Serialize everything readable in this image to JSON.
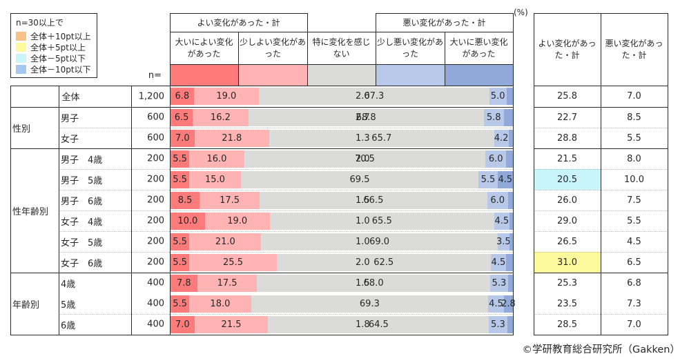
{
  "legend": {
    "title": "n=30以上で",
    "items": [
      {
        "key": "plus10",
        "label": "全体＋10pt以上",
        "color": "#f9c18a"
      },
      {
        "key": "plus5",
        "label": "全体＋5pt以上",
        "color": "#fdfa9d"
      },
      {
        "key": "minus5",
        "label": "全体－5pt以下",
        "color": "#c9f4f9"
      },
      {
        "key": "minus10",
        "label": "全体－10pt以下",
        "color": "#a6c7f0"
      }
    ]
  },
  "labels": {
    "unit": "(%)",
    "n": "n="
  },
  "header": {
    "good_total": "よい変化があった・計",
    "bad_total": "悪い変化があった・計"
  },
  "right_table": {
    "good": "よい変化があった・計",
    "bad": "悪い変化があった・計"
  },
  "colors": {
    "border": "#262626",
    "highlights": {
      "plus10": "#f9c18a",
      "plus5": "#fdfa9d",
      "minus5": "#c9f4f9",
      "minus10": "#a6c7f0"
    }
  },
  "chart_data": {
    "type": "bar",
    "stacked": true,
    "orientation": "horizontal",
    "unit": "%",
    "value_range": [
      0,
      100
    ],
    "series": [
      {
        "label": "大いによい変化があった",
        "color": "#ff7b7b"
      },
      {
        "label": "少しよい変化があった",
        "color": "#ffb3b3"
      },
      {
        "label": "特に変化を感じない",
        "color": "#dbdbd9"
      },
      {
        "label": "少し悪い変化があった",
        "color": "#b8c8e8"
      },
      {
        "label": "大いに悪い変化があった",
        "color": "#90a9d8"
      }
    ],
    "rows": [
      {
        "group": "",
        "label": "全体",
        "n": "1,200",
        "values": [
          6.8,
          19.0,
          67.3,
          5.0,
          2.0
        ],
        "last_outside": true,
        "good": "25.8",
        "bad": "7.0"
      },
      {
        "group": "性別",
        "label": "男子",
        "n": "600",
        "values": [
          6.5,
          16.2,
          68.8,
          5.8,
          2.7
        ],
        "last_outside": true,
        "good": "22.7",
        "bad": "8.5"
      },
      {
        "group": "性別",
        "label": "女子",
        "n": "600",
        "values": [
          7.0,
          21.8,
          65.7,
          4.2,
          1.3
        ],
        "last_outside": true,
        "good": "28.8",
        "bad": "5.5"
      },
      {
        "group": "性年齢別",
        "label": "男子　4歳",
        "n": "200",
        "values": [
          5.5,
          16.0,
          70.5,
          6.0,
          2.0
        ],
        "last_outside": true,
        "good": "21.5",
        "bad": "8.0"
      },
      {
        "group": "性年齢別",
        "label": "男子　5歳",
        "n": "200",
        "values": [
          5.5,
          15.0,
          69.5,
          5.5,
          4.5
        ],
        "last_outside": false,
        "good": "20.5",
        "bad": "10.0",
        "good_hl": "minus5"
      },
      {
        "group": "性年齢別",
        "label": "男子　6歳",
        "n": "200",
        "values": [
          8.5,
          17.5,
          66.5,
          6.0,
          1.5
        ],
        "last_outside": true,
        "good": "26.0",
        "bad": "7.5"
      },
      {
        "group": "性年齢別",
        "label": "女子　4歳",
        "n": "200",
        "values": [
          10.0,
          19.0,
          65.5,
          4.5,
          1.0
        ],
        "last_outside": true,
        "good": "29.0",
        "bad": "5.5"
      },
      {
        "group": "性年齢別",
        "label": "女子　5歳",
        "n": "200",
        "values": [
          5.5,
          21.0,
          69.0,
          3.5,
          1.0
        ],
        "last_outside": true,
        "good": "26.5",
        "bad": "4.5"
      },
      {
        "group": "性年齢別",
        "label": "女子　6歳",
        "n": "200",
        "values": [
          5.5,
          25.5,
          62.5,
          4.5,
          2.0
        ],
        "last_outside": true,
        "good": "31.0",
        "bad": "6.5",
        "good_hl": "plus5"
      },
      {
        "group": "年齢別",
        "label": "4歳",
        "n": "400",
        "values": [
          7.8,
          17.5,
          68.0,
          5.3,
          1.5
        ],
        "last_outside": true,
        "good": "25.3",
        "bad": "6.8"
      },
      {
        "group": "年齢別",
        "label": "5歳",
        "n": "400",
        "values": [
          5.5,
          18.0,
          69.3,
          4.5,
          2.8
        ],
        "last_outside": false,
        "good": "23.5",
        "bad": "7.3",
        "dotted_top": false
      },
      {
        "group": "年齢別",
        "label": "6歳",
        "n": "400",
        "values": [
          7.0,
          21.5,
          64.5,
          5.3,
          1.8
        ],
        "last_outside": true,
        "good": "28.5",
        "bad": "7.0"
      }
    ]
  },
  "footer": {
    "copyright": "©学研教育総合研究所（Gakken）"
  }
}
